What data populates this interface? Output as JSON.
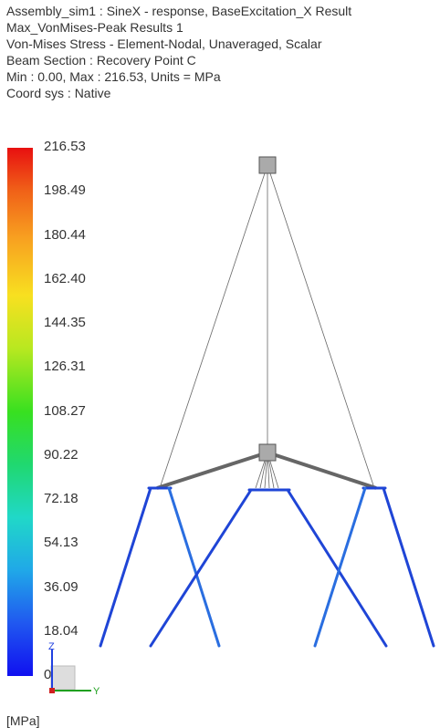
{
  "header": {
    "lines": [
      "Assembly_sim1 : SineX - response, BaseExcitation_X Result",
      "Max_VonMises-Peak Results 1",
      "Von-Mises Stress - Element-Nodal, Unaveraged, Scalar",
      "Beam Section : Recovery Point C",
      "Min : 0.00, Max : 216.53, Units = MPa",
      "Coord sys : Native"
    ]
  },
  "legend": {
    "labels": [
      "216.53",
      "198.49",
      "180.44",
      "162.40",
      "144.35",
      "126.31",
      "108.27",
      "90.22",
      "72.18",
      "54.13",
      "36.09",
      "18.04",
      "0.00"
    ],
    "unit": "[MPa]"
  },
  "triad": {
    "z": "Z",
    "y": "Y"
  }
}
